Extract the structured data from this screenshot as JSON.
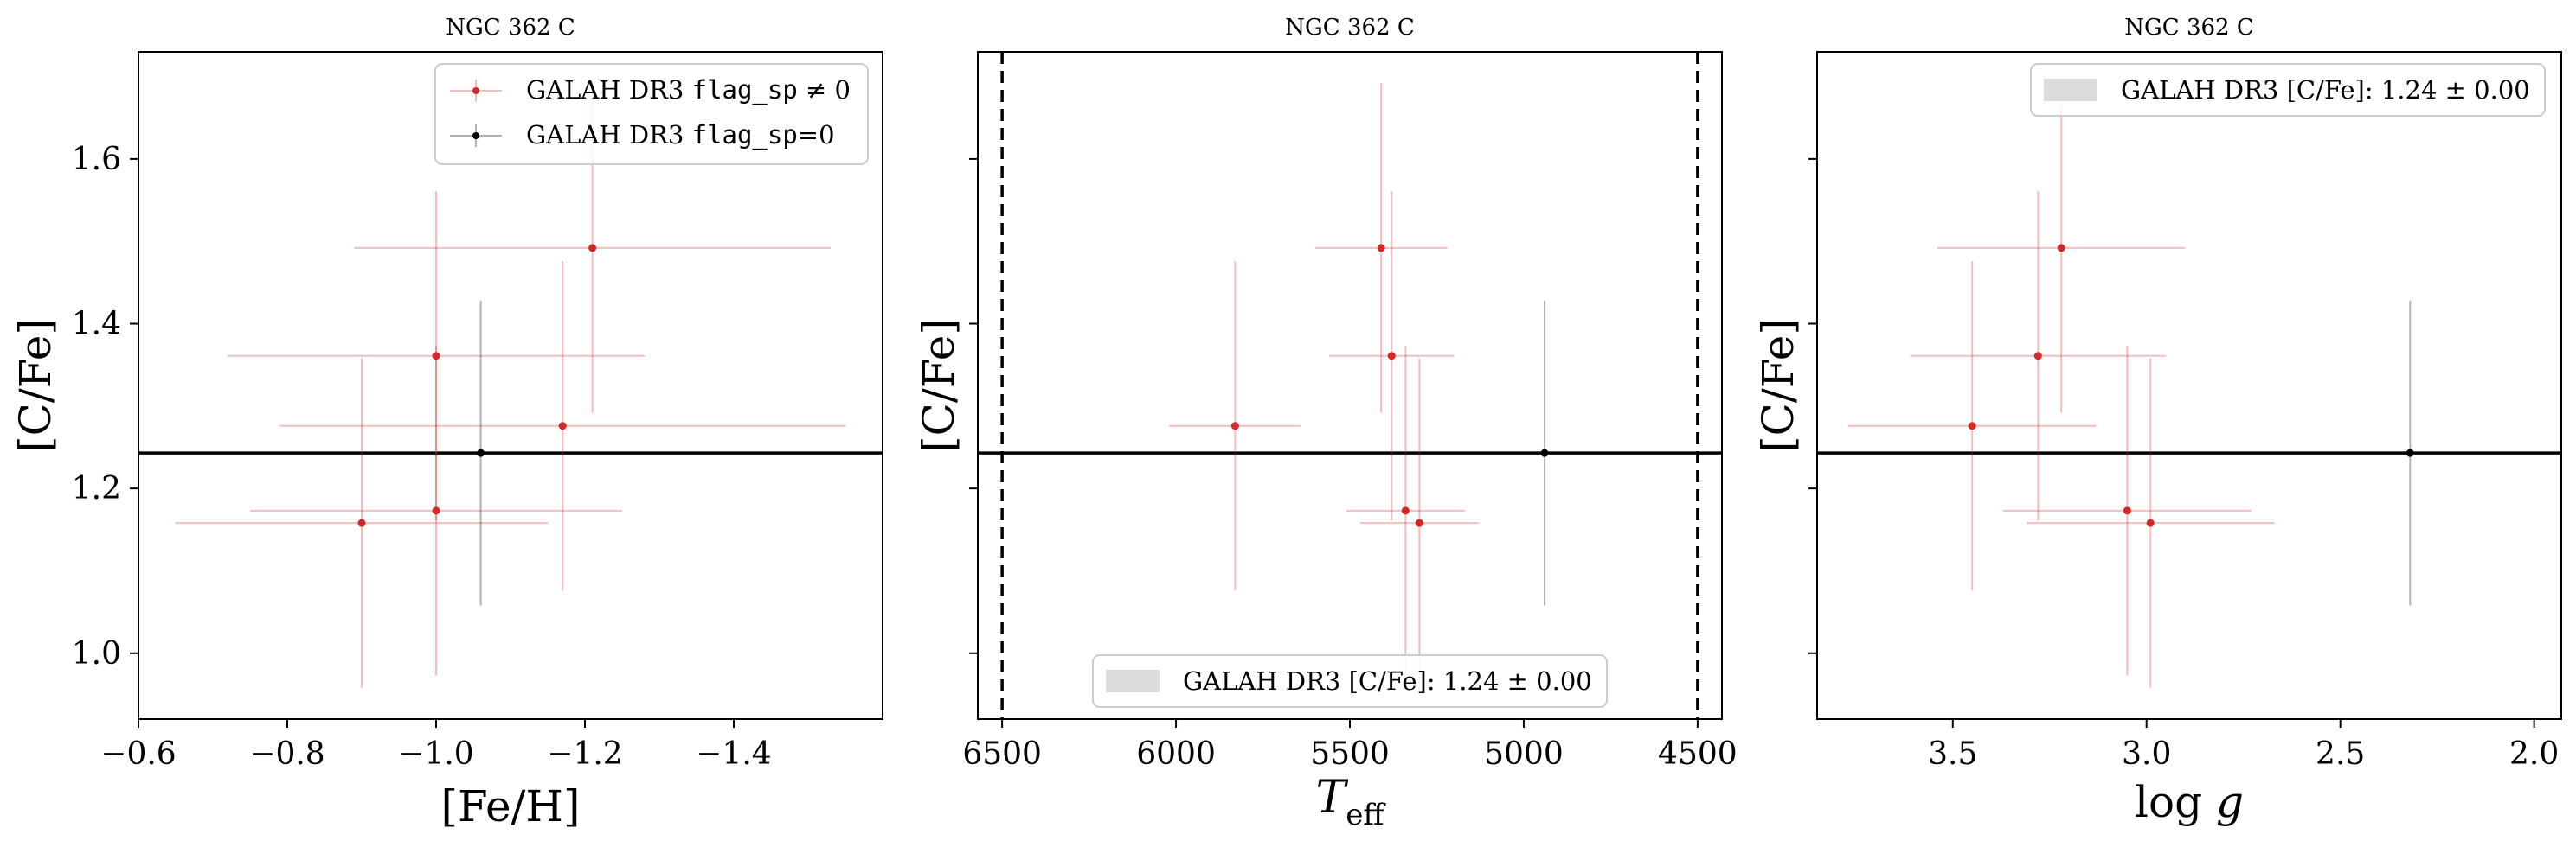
{
  "chart_data": [
    {
      "type": "scatter",
      "title": "NGC 362 C",
      "xlabel": "[Fe/H]",
      "ylabel": "[C/Fe]",
      "xlim": [
        -0.6,
        -1.6
      ],
      "ylim": [
        0.92,
        1.73
      ],
      "xticks": [
        -0.6,
        -0.8,
        -1.0,
        -1.2,
        -1.4
      ],
      "xtick_labels": [
        "−0.6",
        "−0.8",
        "−1.0",
        "−1.2",
        "−1.4"
      ],
      "yticks": [
        1.0,
        1.2,
        1.4,
        1.6
      ],
      "ytick_labels": [
        "1.0",
        "1.2",
        "1.4",
        "1.6"
      ],
      "hline": 1.243,
      "legend": {
        "placement": "top-right",
        "entries": [
          {
            "prefix": "GALAH DR3 ",
            "code": "flag_sp",
            "suffix": " ≠ 0",
            "color": "#d62728"
          },
          {
            "prefix": "GALAH DR3 ",
            "code": "flag_sp",
            "suffix": "=0",
            "color": "#000000"
          }
        ]
      },
      "series": [
        {
          "color": "#d62728",
          "points": [
            {
              "x": -0.9,
              "y": 1.158,
              "xerr": 0.25,
              "yerr": 0.2
            },
            {
              "x": -1.0,
              "y": 1.173,
              "xerr": 0.25,
              "yerr": 0.2
            },
            {
              "x": -1.0,
              "y": 1.361,
              "xerr": 0.28,
              "yerr": 0.2
            },
            {
              "x": -1.17,
              "y": 1.276,
              "xerr": 0.38,
              "yerr": 0.2
            },
            {
              "x": -1.21,
              "y": 1.492,
              "xerr": 0.32,
              "yerr": 0.2
            }
          ]
        },
        {
          "color": "#000000",
          "points": [
            {
              "x": -1.06,
              "y": 1.243,
              "xerr": 0.0,
              "yerr": 0.185
            }
          ]
        }
      ]
    },
    {
      "type": "scatter",
      "title": "NGC 362 C",
      "xlabel": "T_eff",
      "ylabel": "[C/Fe]",
      "xlim": [
        6570,
        4430
      ],
      "ylim": [
        0.92,
        1.73
      ],
      "xticks": [
        6500,
        6000,
        5500,
        5000,
        4500
      ],
      "xtick_labels": [
        "6500",
        "6000",
        "5500",
        "5000",
        "4500"
      ],
      "yticks": [
        1.0,
        1.2,
        1.4,
        1.6
      ],
      "hline": 1.243,
      "vlines": [
        6500,
        4500
      ],
      "legend": {
        "placement": "lower-center",
        "entries": [
          {
            "text": "GALAH DR3 [C/Fe]: 1.24 ± 0.00",
            "color": "#dcdcdc"
          }
        ]
      },
      "series": [
        {
          "color": "#d62728",
          "points": [
            {
              "x": 5830,
              "y": 1.276,
              "xerr": 190,
              "yerr": 0.2
            },
            {
              "x": 5410,
              "y": 1.492,
              "xerr": 190,
              "yerr": 0.2
            },
            {
              "x": 5380,
              "y": 1.361,
              "xerr": 180,
              "yerr": 0.2
            },
            {
              "x": 5340,
              "y": 1.173,
              "xerr": 170,
              "yerr": 0.2
            },
            {
              "x": 5300,
              "y": 1.158,
              "xerr": 170,
              "yerr": 0.2
            }
          ]
        },
        {
          "color": "#000000",
          "points": [
            {
              "x": 4940,
              "y": 1.243,
              "xerr": 0,
              "yerr": 0.185
            }
          ]
        }
      ]
    },
    {
      "type": "scatter",
      "title": "NGC 362 C",
      "xlabel": "log g",
      "ylabel": "[C/Fe]",
      "xlim": [
        3.85,
        1.93
      ],
      "ylim": [
        0.92,
        1.73
      ],
      "xticks": [
        3.5,
        3.0,
        2.5,
        2.0
      ],
      "xtick_labels": [
        "3.5",
        "3.0",
        "2.5",
        "2.0"
      ],
      "yticks": [
        1.0,
        1.2,
        1.4,
        1.6
      ],
      "hline": 1.243,
      "legend": {
        "placement": "top-right",
        "entries": [
          {
            "text": "GALAH DR3 [C/Fe]: 1.24 ± 0.00",
            "color": "#dcdcdc"
          }
        ]
      },
      "series": [
        {
          "color": "#d62728",
          "points": [
            {
              "x": 3.45,
              "y": 1.276,
              "xerr": 0.32,
              "yerr": 0.2
            },
            {
              "x": 3.28,
              "y": 1.361,
              "xerr": 0.33,
              "yerr": 0.2
            },
            {
              "x": 3.22,
              "y": 1.492,
              "xerr": 0.32,
              "yerr": 0.2
            },
            {
              "x": 3.05,
              "y": 1.173,
              "xerr": 0.32,
              "yerr": 0.2
            },
            {
              "x": 2.99,
              "y": 1.158,
              "xerr": 0.32,
              "yerr": 0.2
            }
          ]
        },
        {
          "color": "#000000",
          "points": [
            {
              "x": 2.32,
              "y": 1.243,
              "xerr": 0,
              "yerr": 0.185
            }
          ]
        }
      ]
    }
  ]
}
